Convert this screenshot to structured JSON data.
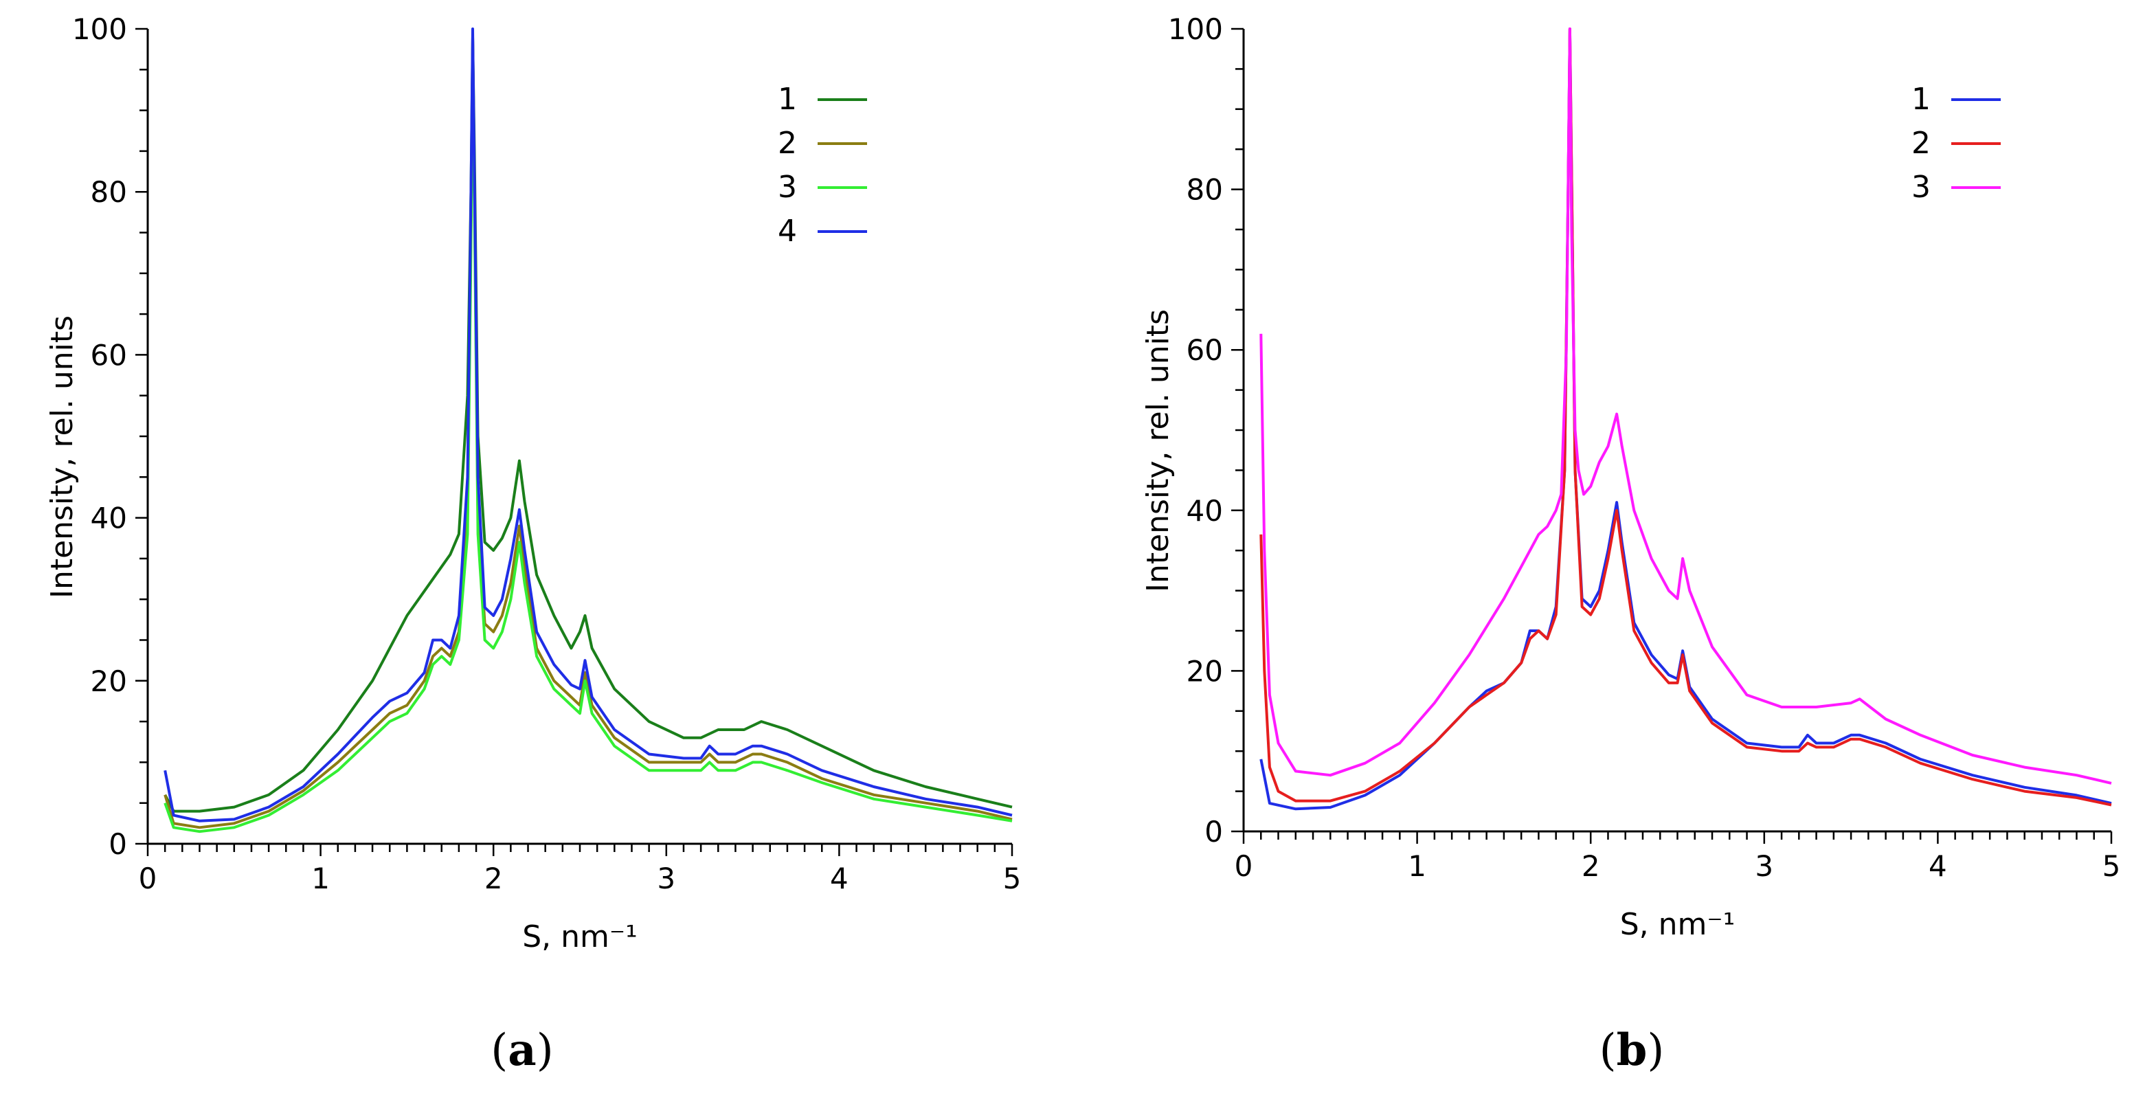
{
  "chart_data": [
    {
      "type": "line",
      "panel_label": "(a)",
      "xlabel": "S, nm⁻¹",
      "ylabel": "Intensity, rel. units",
      "xlim": [
        0,
        5
      ],
      "ylim": [
        0,
        100
      ],
      "xticks": [
        0,
        1,
        2,
        3,
        4,
        5
      ],
      "yticks": [
        0,
        20,
        40,
        60,
        80,
        100
      ],
      "legend_position": "top-right",
      "series": [
        {
          "name": "1",
          "color": "#1a7f1a",
          "x": [
            0.1,
            0.15,
            0.3,
            0.5,
            0.7,
            0.9,
            1.1,
            1.3,
            1.4,
            1.5,
            1.6,
            1.7,
            1.75,
            1.8,
            1.85,
            1.87,
            1.88,
            1.89,
            1.91,
            1.95,
            2.0,
            2.05,
            2.1,
            2.15,
            2.18,
            2.25,
            2.35,
            2.45,
            2.5,
            2.53,
            2.57,
            2.7,
            2.9,
            3.1,
            3.2,
            3.3,
            3.45,
            3.55,
            3.7,
            3.9,
            4.2,
            4.5,
            4.8,
            5.0
          ],
          "y": [
            6,
            4,
            4,
            4.5,
            6,
            9,
            14,
            20,
            24,
            28,
            31,
            34,
            35.5,
            38,
            55,
            80,
            99,
            85,
            50,
            37,
            36,
            37.5,
            40,
            47,
            42,
            33,
            28,
            24,
            26,
            28,
            24,
            19,
            15,
            13,
            13,
            14,
            14,
            15,
            14,
            12,
            9,
            7,
            5.5,
            4.5
          ]
        },
        {
          "name": "2",
          "color": "#8b7d12",
          "x": [
            0.1,
            0.15,
            0.3,
            0.5,
            0.7,
            0.9,
            1.1,
            1.3,
            1.4,
            1.5,
            1.6,
            1.65,
            1.7,
            1.75,
            1.8,
            1.85,
            1.87,
            1.88,
            1.89,
            1.91,
            1.95,
            2.0,
            2.05,
            2.1,
            2.15,
            2.18,
            2.25,
            2.35,
            2.45,
            2.5,
            2.53,
            2.57,
            2.7,
            2.9,
            3.1,
            3.2,
            3.25,
            3.3,
            3.4,
            3.5,
            3.55,
            3.7,
            3.9,
            4.2,
            4.5,
            4.8,
            5.0
          ],
          "y": [
            6,
            2.5,
            2,
            2.5,
            4,
            6.5,
            10,
            14,
            16,
            17,
            20,
            23,
            24,
            23,
            26,
            40,
            75,
            99,
            80,
            40,
            27,
            26,
            28,
            32,
            39,
            34,
            24,
            20,
            18,
            17,
            21,
            17,
            13,
            10,
            10,
            10,
            11,
            10,
            10,
            11,
            11,
            10,
            8,
            6,
            5,
            4,
            3
          ]
        },
        {
          "name": "3",
          "color": "#33ee33",
          "x": [
            0.1,
            0.15,
            0.3,
            0.5,
            0.7,
            0.9,
            1.1,
            1.3,
            1.4,
            1.5,
            1.6,
            1.65,
            1.7,
            1.75,
            1.8,
            1.85,
            1.87,
            1.88,
            1.89,
            1.91,
            1.95,
            2.0,
            2.05,
            2.1,
            2.15,
            2.18,
            2.25,
            2.35,
            2.45,
            2.5,
            2.53,
            2.57,
            2.7,
            2.9,
            3.1,
            3.2,
            3.25,
            3.3,
            3.4,
            3.5,
            3.55,
            3.7,
            3.9,
            4.2,
            4.5,
            4.8,
            5.0
          ],
          "y": [
            5,
            2,
            1.5,
            2,
            3.5,
            6,
            9,
            13,
            15,
            16,
            19,
            22,
            23,
            22,
            25,
            38,
            73,
            98,
            78,
            38,
            25,
            24,
            26,
            30,
            37,
            32,
            23,
            19,
            17,
            16,
            20,
            16,
            12,
            9,
            9,
            9,
            10,
            9,
            9,
            10,
            10,
            9,
            7.5,
            5.5,
            4.5,
            3.5,
            2.8
          ]
        },
        {
          "name": "4",
          "color": "#1f2ee6",
          "x": [
            0.1,
            0.15,
            0.3,
            0.5,
            0.7,
            0.9,
            1.1,
            1.3,
            1.4,
            1.5,
            1.6,
            1.65,
            1.7,
            1.75,
            1.8,
            1.85,
            1.87,
            1.88,
            1.89,
            1.91,
            1.95,
            2.0,
            2.05,
            2.1,
            2.15,
            2.18,
            2.25,
            2.35,
            2.45,
            2.5,
            2.53,
            2.57,
            2.7,
            2.9,
            3.1,
            3.2,
            3.25,
            3.3,
            3.4,
            3.5,
            3.55,
            3.7,
            3.9,
            4.2,
            4.5,
            4.8,
            5.0
          ],
          "y": [
            9,
            3.5,
            2.8,
            3,
            4.5,
            7,
            11,
            15.5,
            17.5,
            18.5,
            21,
            25,
            25,
            24,
            28,
            45,
            80,
            100,
            82,
            45,
            29,
            28,
            30,
            35,
            41,
            36,
            26,
            22,
            19.5,
            19,
            22.5,
            18,
            14,
            11,
            10.5,
            10.5,
            12,
            11,
            11,
            12,
            12,
            11,
            9,
            7,
            5.5,
            4.5,
            3.5
          ]
        }
      ]
    },
    {
      "type": "line",
      "panel_label": "(b)",
      "xlabel": "S, nm⁻¹",
      "ylabel": "Intensity, rel. units",
      "xlim": [
        0,
        5
      ],
      "ylim": [
        0,
        100
      ],
      "xticks": [
        0,
        1,
        2,
        3,
        4,
        5
      ],
      "yticks": [
        0,
        20,
        40,
        60,
        80,
        100
      ],
      "legend_position": "top-right",
      "series": [
        {
          "name": "1",
          "color": "#1f2ee6",
          "x": [
            0.1,
            0.15,
            0.3,
            0.5,
            0.7,
            0.9,
            1.1,
            1.3,
            1.4,
            1.5,
            1.6,
            1.65,
            1.7,
            1.75,
            1.8,
            1.85,
            1.87,
            1.88,
            1.89,
            1.91,
            1.95,
            2.0,
            2.05,
            2.1,
            2.15,
            2.18,
            2.25,
            2.35,
            2.45,
            2.5,
            2.53,
            2.57,
            2.7,
            2.9,
            3.1,
            3.2,
            3.25,
            3.3,
            3.4,
            3.5,
            3.55,
            3.7,
            3.9,
            4.2,
            4.5,
            4.8,
            5.0
          ],
          "y": [
            9,
            3.5,
            2.8,
            3,
            4.5,
            7,
            11,
            15.5,
            17.5,
            18.5,
            21,
            25,
            25,
            24,
            28,
            45,
            80,
            100,
            82,
            45,
            29,
            28,
            30,
            35,
            41,
            36,
            26,
            22,
            19.5,
            19,
            22.5,
            18,
            14,
            11,
            10.5,
            10.5,
            12,
            11,
            11,
            12,
            12,
            11,
            9,
            7,
            5.5,
            4.5,
            3.5
          ]
        },
        {
          "name": "2",
          "color": "#e61e1e",
          "x": [
            0.1,
            0.12,
            0.15,
            0.2,
            0.3,
            0.5,
            0.7,
            0.9,
            1.1,
            1.3,
            1.4,
            1.5,
            1.6,
            1.65,
            1.7,
            1.75,
            1.8,
            1.85,
            1.87,
            1.88,
            1.89,
            1.91,
            1.95,
            2.0,
            2.05,
            2.1,
            2.15,
            2.18,
            2.25,
            2.35,
            2.45,
            2.5,
            2.53,
            2.57,
            2.7,
            2.9,
            3.1,
            3.2,
            3.25,
            3.3,
            3.4,
            3.5,
            3.55,
            3.7,
            3.9,
            4.2,
            4.5,
            4.8,
            5.0
          ],
          "y": [
            37,
            20,
            8,
            5,
            3.8,
            3.8,
            5,
            7.5,
            11,
            15.5,
            17,
            18.5,
            21,
            24,
            25,
            24,
            27,
            45,
            80,
            100,
            82,
            45,
            28,
            27,
            29,
            34,
            40,
            35,
            25,
            21,
            18.5,
            18.5,
            22,
            17.5,
            13.5,
            10.5,
            10,
            10,
            11,
            10.5,
            10.5,
            11.5,
            11.5,
            10.5,
            8.5,
            6.5,
            5,
            4.2,
            3.3
          ]
        },
        {
          "name": "3",
          "color": "#ff1aff",
          "x": [
            0.1,
            0.12,
            0.15,
            0.2,
            0.3,
            0.5,
            0.7,
            0.9,
            1.1,
            1.3,
            1.5,
            1.6,
            1.7,
            1.75,
            1.8,
            1.83,
            1.86,
            1.88,
            1.89,
            1.91,
            1.93,
            1.96,
            2.0,
            2.05,
            2.1,
            2.15,
            2.18,
            2.25,
            2.35,
            2.45,
            2.5,
            2.53,
            2.57,
            2.7,
            2.9,
            3.1,
            3.3,
            3.5,
            3.55,
            3.7,
            3.9,
            4.2,
            4.5,
            4.8,
            5.0
          ],
          "y": [
            62,
            35,
            17,
            11,
            7.5,
            7,
            8.5,
            11,
            16,
            22,
            29,
            33,
            37,
            38,
            40,
            42,
            60,
            100,
            75,
            50,
            45,
            42,
            43,
            46,
            48,
            52,
            48,
            40,
            34,
            30,
            29,
            34,
            30,
            23,
            17,
            15.5,
            15.5,
            16,
            16.5,
            14,
            12,
            9.5,
            8,
            7,
            6
          ]
        }
      ]
    }
  ]
}
